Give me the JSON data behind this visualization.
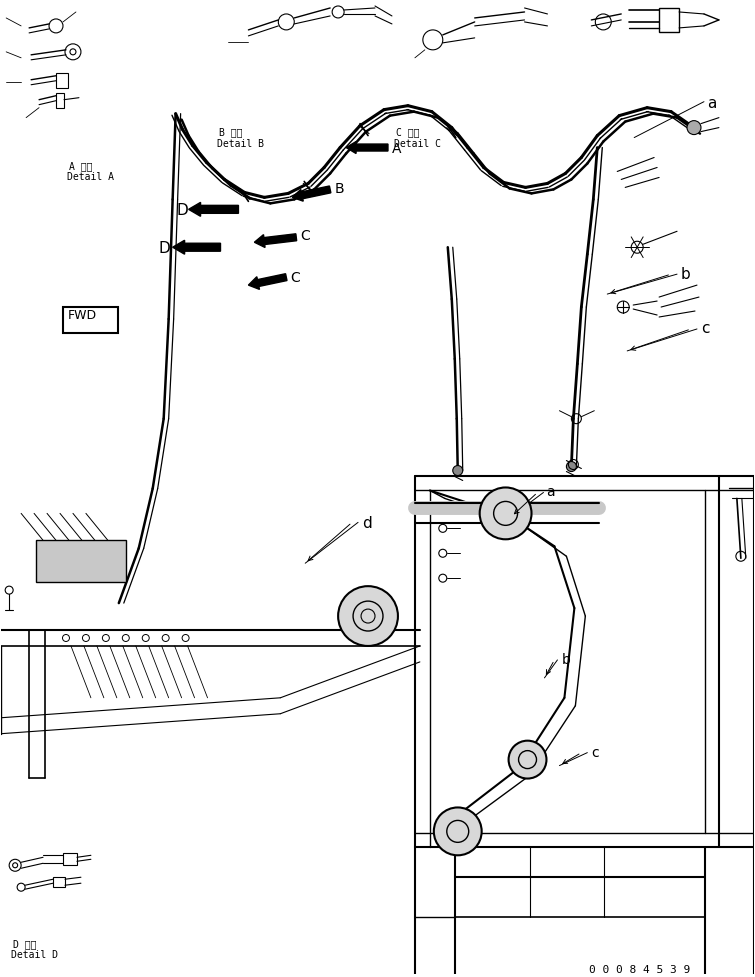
{
  "background_color": "#ffffff",
  "line_color": "#000000",
  "fig_width": 7.55,
  "fig_height": 9.77,
  "dpi": 100,
  "part_number": "0 0 0 8 4 5 3 9",
  "labels": {
    "detail_A_jp": "A 詳細",
    "detail_A_en": "Detail A",
    "detail_B_jp": "B 詳細",
    "detail_B_en": "Detail B",
    "detail_C_jp": "C 詳細",
    "detail_C_en": "Detail C",
    "detail_D_jp": "D 詳細",
    "detail_D_en": "Detail D",
    "fwd": "FWD"
  },
  "arrow_labels": [
    "A",
    "B",
    "C",
    "C",
    "D",
    "D"
  ],
  "ref_letters": [
    "a",
    "b",
    "c",
    "d"
  ]
}
